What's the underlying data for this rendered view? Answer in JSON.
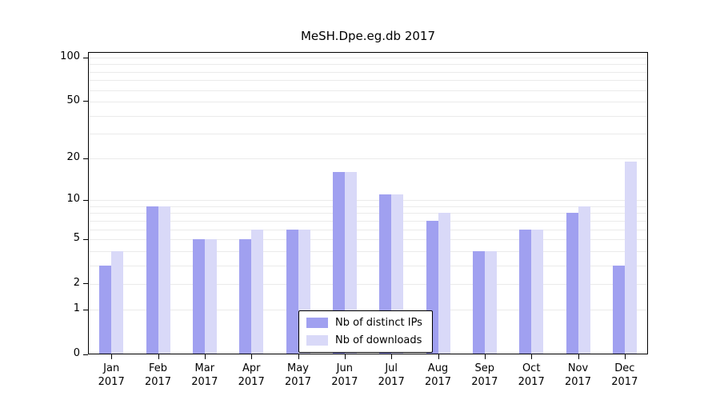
{
  "chart_data": {
    "type": "bar",
    "title": "MeSH.Dpe.eg.db 2017",
    "xlabel": "",
    "ylabel": "",
    "y_scale": "log1p",
    "ylim": [
      0,
      100
    ],
    "y_ticks": [
      0,
      1,
      2,
      5,
      10,
      20,
      50,
      100
    ],
    "gridline_values": [
      1,
      2,
      3,
      4,
      5,
      6,
      7,
      8,
      9,
      10,
      20,
      30,
      40,
      50,
      60,
      70,
      80,
      90,
      100
    ],
    "grid": true,
    "legend_position": "lower center inside",
    "categories": [
      {
        "month": "Jan",
        "year": "2017"
      },
      {
        "month": "Feb",
        "year": "2017"
      },
      {
        "month": "Mar",
        "year": "2017"
      },
      {
        "month": "Apr",
        "year": "2017"
      },
      {
        "month": "May",
        "year": "2017"
      },
      {
        "month": "Jun",
        "year": "2017"
      },
      {
        "month": "Jul",
        "year": "2017"
      },
      {
        "month": "Aug",
        "year": "2017"
      },
      {
        "month": "Sep",
        "year": "2017"
      },
      {
        "month": "Oct",
        "year": "2017"
      },
      {
        "month": "Nov",
        "year": "2017"
      },
      {
        "month": "Dec",
        "year": "2017"
      }
    ],
    "series": [
      {
        "name": "Nb of distinct IPs",
        "color": "#a0a0f0",
        "values": [
          3,
          9,
          5,
          5,
          6,
          16,
          11,
          7,
          4,
          6,
          8,
          3
        ]
      },
      {
        "name": "Nb of downloads",
        "color": "#d9d9f8",
        "values": [
          4,
          9,
          5,
          6,
          6,
          16,
          11,
          8,
          4,
          6,
          9,
          19
        ]
      }
    ]
  }
}
